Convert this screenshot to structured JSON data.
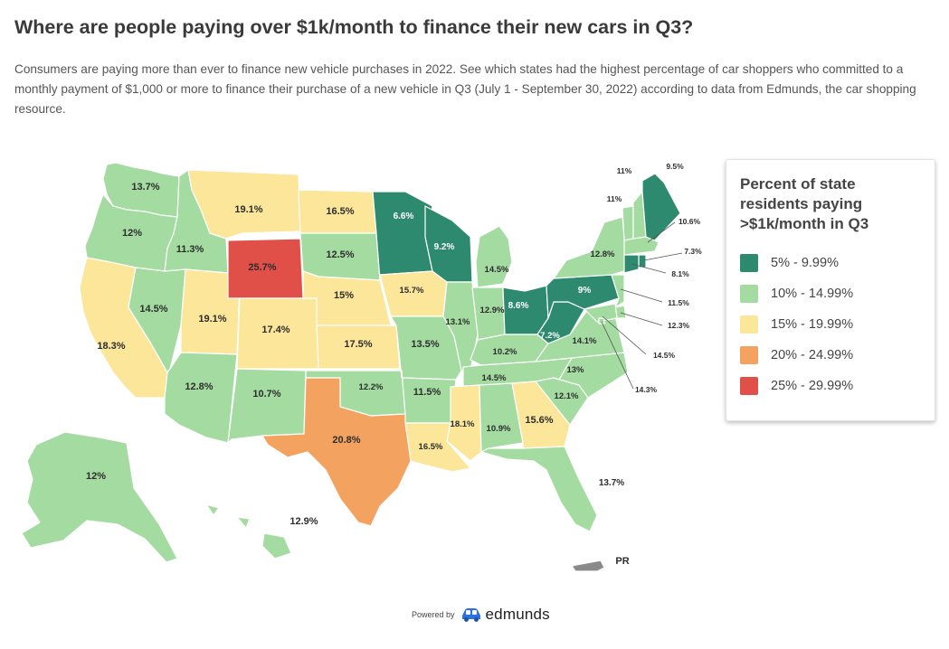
{
  "title": "Where are people paying over $1k/month to finance their new cars in Q3?",
  "description": "Consumers are paying more than ever to finance new vehicle purchases in 2022. See which states had the highest percentage of car shoppers who committed to a monthly payment of $1,000 or more to finance their purchase of a new vehicle in Q3 (July 1 - September 30, 2022) according to data from Edmunds, the car shopping resource.",
  "colors": {
    "band_5_10": "#2e8a6e",
    "band_10_15": "#a3dba1",
    "band_15_20": "#fbe69a",
    "band_20_25": "#f4a25f",
    "band_25_30": "#e05048",
    "no_data": "#8a8a8a",
    "border": "#ffffff"
  },
  "legend": {
    "title": "Percent of state residents paying >$1k/month in Q3",
    "items": [
      {
        "label": "5% - 9.99%",
        "color": "#2e8a6e"
      },
      {
        "label": "10% - 14.99%",
        "color": "#a3dba1"
      },
      {
        "label": "15% - 19.99%",
        "color": "#fbe69a"
      },
      {
        "label": "20% - 24.99%",
        "color": "#f4a25f"
      },
      {
        "label": "25% - 29.99%",
        "color": "#e05048"
      }
    ]
  },
  "states": [
    {
      "id": "WA",
      "value": "13.7%",
      "band": "band_10_15"
    },
    {
      "id": "OR",
      "value": "12%",
      "band": "band_10_15"
    },
    {
      "id": "CA",
      "value": "18.3%",
      "band": "band_15_20"
    },
    {
      "id": "ID",
      "value": "11.3%",
      "band": "band_10_15"
    },
    {
      "id": "NV",
      "value": "14.5%",
      "band": "band_10_15"
    },
    {
      "id": "UT",
      "value": "19.1%",
      "band": "band_15_20"
    },
    {
      "id": "AZ",
      "value": "12.8%",
      "band": "band_10_15"
    },
    {
      "id": "MT",
      "value": "19.1%",
      "band": "band_15_20"
    },
    {
      "id": "WY",
      "value": "25.7%",
      "band": "band_25_30"
    },
    {
      "id": "CO",
      "value": "17.4%",
      "band": "band_15_20"
    },
    {
      "id": "NM",
      "value": "10.7%",
      "band": "band_10_15"
    },
    {
      "id": "ND",
      "value": "16.5%",
      "band": "band_15_20"
    },
    {
      "id": "SD",
      "value": "12.5%",
      "band": "band_10_15"
    },
    {
      "id": "NE",
      "value": "15%",
      "band": "band_15_20"
    },
    {
      "id": "KS",
      "value": "17.5%",
      "band": "band_15_20"
    },
    {
      "id": "OK",
      "value": "12.2%",
      "band": "band_10_15"
    },
    {
      "id": "TX",
      "value": "20.8%",
      "band": "band_20_25"
    },
    {
      "id": "MN",
      "value": "6.6%",
      "band": "band_5_10"
    },
    {
      "id": "IA",
      "value": "15.7%",
      "band": "band_15_20"
    },
    {
      "id": "MO",
      "value": "13.5%",
      "band": "band_10_15"
    },
    {
      "id": "AR",
      "value": "11.5%",
      "band": "band_10_15"
    },
    {
      "id": "LA",
      "value": "16.5%",
      "band": "band_15_20"
    },
    {
      "id": "WI",
      "value": "9.2%",
      "band": "band_5_10"
    },
    {
      "id": "IL",
      "value": "13.1%",
      "band": "band_10_15"
    },
    {
      "id": "MI",
      "value": "14.5%",
      "band": "band_10_15"
    },
    {
      "id": "IN",
      "value": "12.9%",
      "band": "band_10_15"
    },
    {
      "id": "OH",
      "value": "8.6%",
      "band": "band_5_10"
    },
    {
      "id": "KY",
      "value": "10.2%",
      "band": "band_10_15"
    },
    {
      "id": "TN",
      "value": "14.5%",
      "band": "band_10_15"
    },
    {
      "id": "MS",
      "value": "18.1%",
      "band": "band_15_20"
    },
    {
      "id": "AL",
      "value": "10.9%",
      "band": "band_10_15"
    },
    {
      "id": "GA",
      "value": "15.6%",
      "band": "band_15_20"
    },
    {
      "id": "FL",
      "value": "13.7%",
      "band": "band_10_15"
    },
    {
      "id": "SC",
      "value": "12.1%",
      "band": "band_10_15"
    },
    {
      "id": "NC",
      "value": "13%",
      "band": "band_10_15"
    },
    {
      "id": "VA",
      "value": "14.1%",
      "band": "band_10_15"
    },
    {
      "id": "WV",
      "value": "7.2%",
      "band": "band_5_10"
    },
    {
      "id": "PA",
      "value": "9%",
      "band": "band_5_10"
    },
    {
      "id": "NY",
      "value": "12.8%",
      "band": "band_10_15"
    },
    {
      "id": "VT",
      "value": "11%",
      "band": "band_10_15"
    },
    {
      "id": "NH",
      "value": "11%",
      "band": "band_10_15"
    },
    {
      "id": "ME",
      "value": "9.5%",
      "band": "band_5_10"
    },
    {
      "id": "MA",
      "value": "10.6%",
      "band": "band_10_15"
    },
    {
      "id": "RI",
      "value": "7.3%",
      "band": "band_5_10"
    },
    {
      "id": "CT",
      "value": "8.1%",
      "band": "band_5_10"
    },
    {
      "id": "NJ",
      "value": "11.5%",
      "band": "band_10_15"
    },
    {
      "id": "DE",
      "value": "12.3%",
      "band": "band_10_15"
    },
    {
      "id": "MD",
      "value": "14.5%",
      "band": "band_10_15"
    },
    {
      "id": "DC",
      "value": "14.3%",
      "band": "band_10_15"
    },
    {
      "id": "AK",
      "value": "12%",
      "band": "band_10_15"
    },
    {
      "id": "HI",
      "value": "12.9%",
      "band": "band_10_15"
    },
    {
      "id": "PR",
      "value": "PR",
      "band": "no_data"
    }
  ],
  "footer": {
    "powered_by": "Powered by",
    "brand": "edmunds",
    "brand_color": "#2c6fde"
  }
}
